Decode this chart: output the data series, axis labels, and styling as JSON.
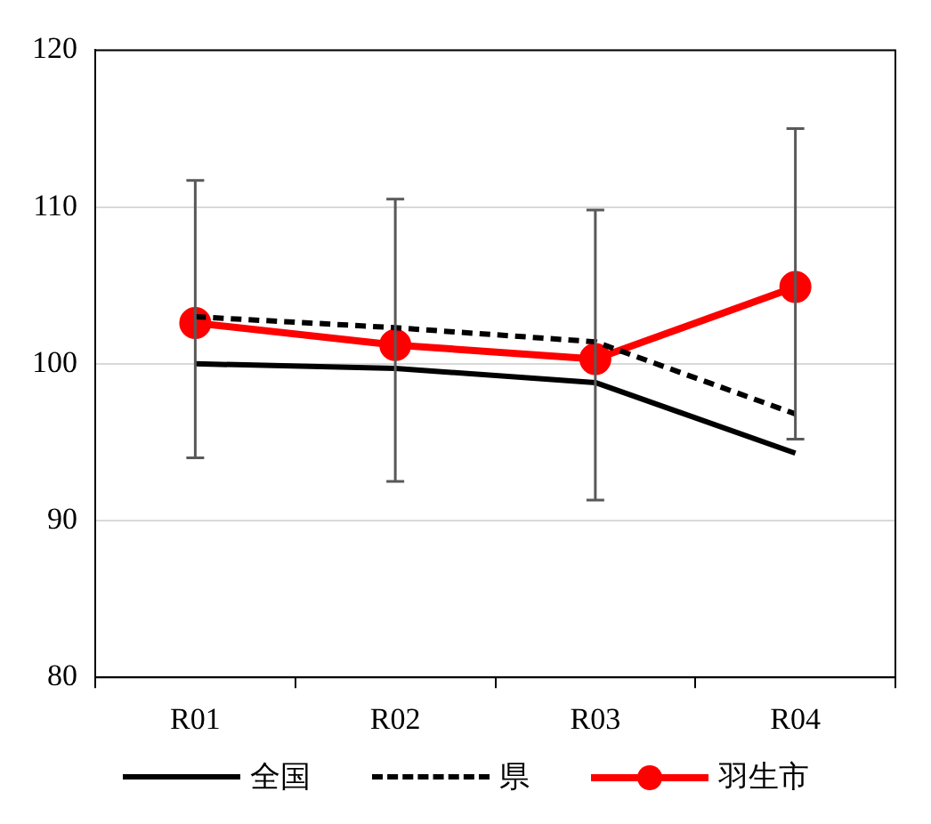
{
  "chart_data": {
    "type": "line",
    "categories": [
      "R01",
      "R02",
      "R03",
      "R04"
    ],
    "series": [
      {
        "name": "全国",
        "color": "#000000",
        "line_style": "solid",
        "marker": "none",
        "values": [
          100.0,
          99.7,
          98.8,
          94.3
        ]
      },
      {
        "name": "県",
        "color": "#000000",
        "line_style": "dashed",
        "marker": "none",
        "values": [
          103.0,
          102.3,
          101.4,
          96.8
        ]
      },
      {
        "name": "羽生市",
        "color": "#ff0000",
        "line_style": "solid",
        "marker": "circle",
        "values": [
          102.6,
          101.2,
          100.3,
          104.9
        ],
        "errors": [
          [
            94.0,
            111.7
          ],
          [
            92.5,
            110.5
          ],
          [
            91.3,
            109.8
          ],
          [
            95.2,
            115.0
          ]
        ]
      }
    ],
    "ylim": [
      80,
      120
    ],
    "yticks": [
      80,
      90,
      100,
      110,
      120
    ],
    "grid": "y",
    "legend": "bottom"
  }
}
